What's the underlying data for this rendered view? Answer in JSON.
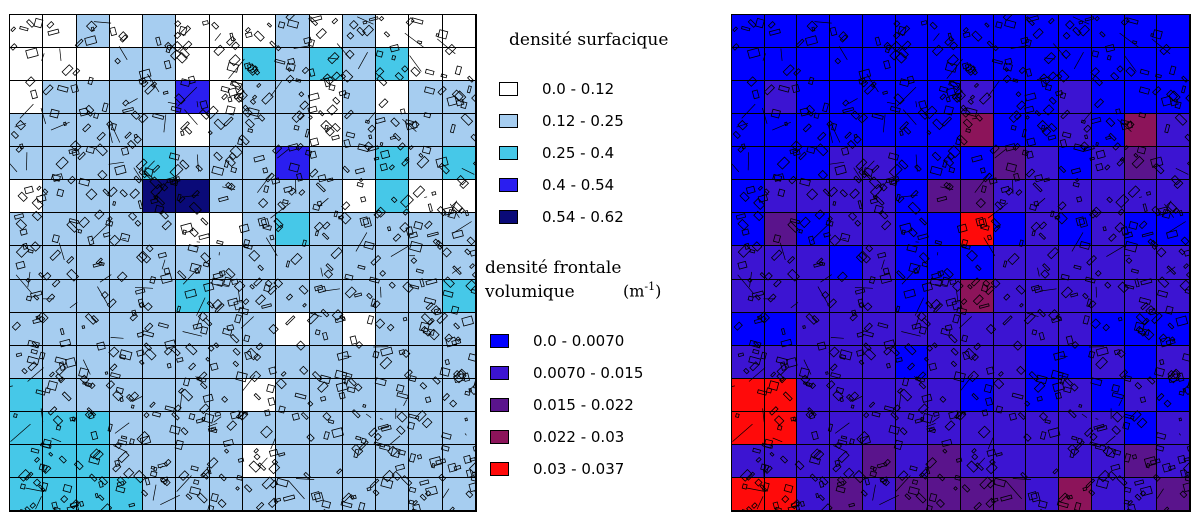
{
  "legend_surfacique": {
    "title": "densité surfacique",
    "items": [
      {
        "label": "0.0 - 0.12",
        "color": "#ffffff"
      },
      {
        "label": "0.12 - 0.25",
        "color": "#a6cdf0"
      },
      {
        "label": "0.25 - 0.4",
        "color": "#46c8e8"
      },
      {
        "label": "0.4 - 0.54",
        "color": "#2a1ef0"
      },
      {
        "label": "0.54 - 0.62",
        "color": "#0a0a78"
      }
    ]
  },
  "legend_frontale": {
    "title_line1": "densité frontale",
    "title_line2": "volumique",
    "unit_base": "(m",
    "unit_exp": "-1",
    "unit_close": ")",
    "items": [
      {
        "label": "0.0 - 0.0070",
        "color": "#0000ff"
      },
      {
        "label": "0.0070 - 0.015",
        "color": "#3c14d2"
      },
      {
        "label": "0.015 - 0.022",
        "color": "#5a148c"
      },
      {
        "label": "0.022 - 0.03",
        "color": "#8c145a"
      },
      {
        "label": "0.03 - 0.037",
        "color": "#ff0a0a"
      }
    ]
  },
  "map_left_classes": [
    "00101000101000",
    "00011002121200",
    "01111301101011",
    "11111011101111",
    "11112111311212",
    "01114411110200",
    "11111001211111",
    "11111111111111",
    "11111211111112",
    "11111111010111",
    "11111111111111",
    "21111110111111",
    "22211111111111",
    "22211110111111",
    "22221111111111"
  ],
  "map_right_classes": [
    "00000000000000",
    "00000000000000",
    "01000001001000",
    "00000003001031",
    "00011000210121",
    "01111022111111",
    "02011004010100",
    "11101000111111",
    "11111013111111",
    "00111111111000",
    "11111011100101",
    "44111110101010",
    "44111111111101",
    "11112121111121",
    "44121222213112"
  ]
}
